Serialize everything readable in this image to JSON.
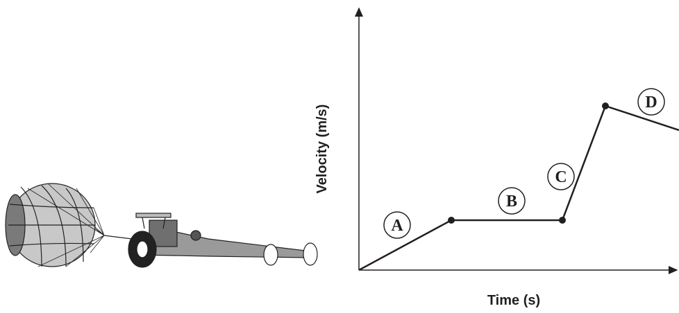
{
  "graph": {
    "x_label": "Time (s)",
    "y_label": "Velocity (m/s)",
    "segments": [
      {
        "label": "A"
      },
      {
        "label": "B"
      },
      {
        "label": "C"
      },
      {
        "label": "D"
      }
    ]
  }
}
